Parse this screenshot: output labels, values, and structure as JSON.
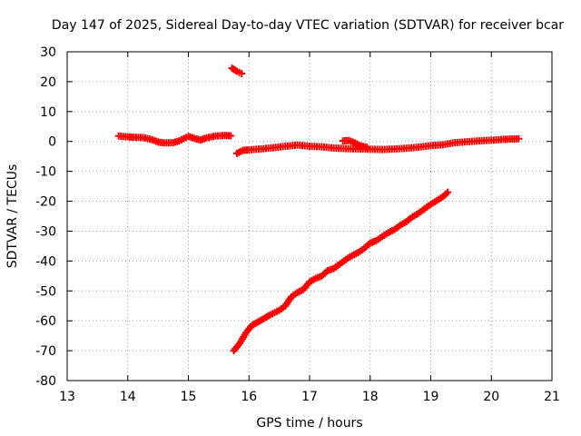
{
  "chart_data": {
    "type": "scatter",
    "title": "Day 147 of 2025, Sidereal Day-to-day VTEC variation (SDTVAR) for receiver bcar",
    "xlabel": "GPS time / hours",
    "ylabel": "SDTVAR / TECUs",
    "xlim": [
      13,
      21
    ],
    "ylim": [
      -80,
      30
    ],
    "xticks": [
      13,
      14,
      15,
      16,
      17,
      18,
      19,
      20,
      21
    ],
    "yticks": [
      -80,
      -70,
      -60,
      -50,
      -40,
      -30,
      -20,
      -10,
      0,
      10,
      20,
      30
    ],
    "grid": true,
    "marker": "+",
    "series": [
      {
        "name": "arc-1",
        "color": "#ff0000",
        "points": [
          [
            13.85,
            1.8
          ],
          [
            14.0,
            1.5
          ],
          [
            14.1,
            1.4
          ],
          [
            14.25,
            1.3
          ],
          [
            14.4,
            0.6
          ],
          [
            14.5,
            -0.2
          ],
          [
            14.6,
            -0.5
          ],
          [
            14.75,
            -0.4
          ],
          [
            14.85,
            0.2
          ],
          [
            15.0,
            1.7
          ],
          [
            15.1,
            1.0
          ],
          [
            15.2,
            0.5
          ],
          [
            15.3,
            1.2
          ],
          [
            15.45,
            1.8
          ],
          [
            15.6,
            2.0
          ],
          [
            15.7,
            1.9
          ]
        ]
      },
      {
        "name": "arc-2",
        "color": "#ff0000",
        "points": [
          [
            15.72,
            24.5
          ],
          [
            15.8,
            23.5
          ],
          [
            15.88,
            22.7
          ]
        ]
      },
      {
        "name": "arc-3",
        "color": "#ff0000",
        "points": [
          [
            15.8,
            -4.0
          ],
          [
            15.9,
            -3.0
          ],
          [
            16.0,
            -2.8
          ],
          [
            16.2,
            -2.5
          ],
          [
            16.4,
            -2.1
          ],
          [
            16.6,
            -1.6
          ],
          [
            16.8,
            -1.2
          ],
          [
            17.0,
            -1.6
          ],
          [
            17.2,
            -1.8
          ],
          [
            17.4,
            -2.2
          ],
          [
            17.6,
            -2.4
          ],
          [
            17.8,
            -2.5
          ],
          [
            18.0,
            -2.6
          ],
          [
            18.2,
            -2.7
          ],
          [
            18.4,
            -2.5
          ],
          [
            18.6,
            -2.3
          ],
          [
            18.8,
            -1.9
          ],
          [
            19.0,
            -1.4
          ],
          [
            19.2,
            -1.1
          ],
          [
            19.4,
            -0.4
          ],
          [
            19.6,
            -0.1
          ],
          [
            19.8,
            0.2
          ],
          [
            20.0,
            0.4
          ],
          [
            20.2,
            0.7
          ],
          [
            20.45,
            0.9
          ]
        ]
      },
      {
        "name": "arc-4",
        "color": "#ff0000",
        "points": [
          [
            17.55,
            0.2
          ],
          [
            17.65,
            0.3
          ],
          [
            17.75,
            -0.5
          ],
          [
            17.85,
            -1.5
          ],
          [
            17.95,
            -2.0
          ]
        ]
      },
      {
        "name": "arc-5",
        "color": "#ff0000",
        "points": [
          [
            15.75,
            -70.0
          ],
          [
            15.85,
            -67.5
          ],
          [
            15.95,
            -64.0
          ],
          [
            16.05,
            -61.5
          ],
          [
            16.2,
            -59.8
          ],
          [
            16.35,
            -58.0
          ],
          [
            16.5,
            -56.5
          ],
          [
            16.6,
            -55.0
          ],
          [
            16.7,
            -52.0
          ],
          [
            16.8,
            -50.5
          ],
          [
            16.9,
            -49.5
          ],
          [
            17.0,
            -47.0
          ],
          [
            17.1,
            -45.8
          ],
          [
            17.2,
            -45.0
          ],
          [
            17.3,
            -43.2
          ],
          [
            17.4,
            -42.5
          ],
          [
            17.5,
            -41.0
          ],
          [
            17.6,
            -39.5
          ],
          [
            17.7,
            -38.2
          ],
          [
            17.8,
            -37.2
          ],
          [
            17.9,
            -35.8
          ],
          [
            18.0,
            -34.0
          ],
          [
            18.1,
            -33.2
          ],
          [
            18.2,
            -31.8
          ],
          [
            18.3,
            -30.5
          ],
          [
            18.4,
            -29.5
          ],
          [
            18.5,
            -28.0
          ],
          [
            18.6,
            -26.8
          ],
          [
            18.7,
            -25.2
          ],
          [
            18.8,
            -24.0
          ],
          [
            18.9,
            -22.5
          ],
          [
            19.0,
            -21.0
          ],
          [
            19.1,
            -19.8
          ],
          [
            19.2,
            -18.5
          ],
          [
            19.28,
            -17.0
          ]
        ]
      }
    ]
  }
}
